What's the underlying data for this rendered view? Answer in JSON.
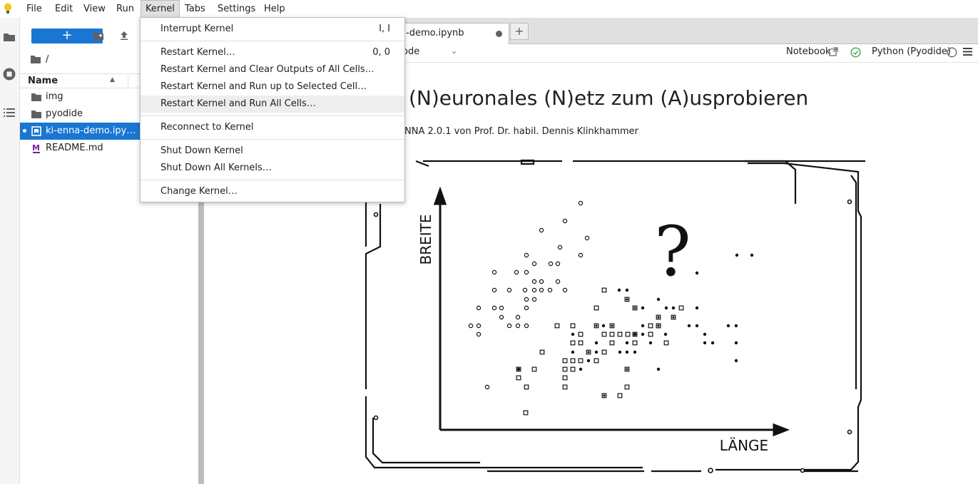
{
  "menubar": {
    "items": [
      "File",
      "Edit",
      "View",
      "Run",
      "Kernel",
      "Tabs",
      "Settings",
      "Help"
    ],
    "active": "Kernel"
  },
  "kernel_menu": {
    "items": [
      {
        "label": "Interrupt Kernel",
        "shortcut": "I, I"
      },
      {
        "label": "Restart Kernel…",
        "shortcut": "0, 0"
      },
      {
        "label": "Restart Kernel and Clear Outputs of All Cells…",
        "shortcut": ""
      },
      {
        "label": "Restart Kernel and Run up to Selected Cell…",
        "shortcut": ""
      },
      {
        "label": "Restart Kernel and Run All Cells…",
        "shortcut": ""
      },
      {
        "label": "Reconnect to Kernel",
        "shortcut": ""
      },
      {
        "label": "Shut Down Kernel",
        "shortcut": ""
      },
      {
        "label": "Shut Down All Kernels…",
        "shortcut": ""
      },
      {
        "label": "Change Kernel…",
        "shortcut": ""
      }
    ],
    "hovered": "Restart Kernel and Run All Cells…"
  },
  "filebrowser": {
    "new_button": "+",
    "path": "/",
    "column_name": "Name",
    "files": [
      {
        "name": "img",
        "type": "folder"
      },
      {
        "name": "pyodide",
        "type": "folder"
      },
      {
        "name": "ki-enna-demo.ipy…",
        "type": "notebook",
        "selected": true
      },
      {
        "name": "README.md",
        "type": "markdown"
      }
    ]
  },
  "tabs": {
    "doc_tab_label": "-demo.ipynb",
    "add_tab": "+"
  },
  "nb_toolbar": {
    "cell_type": "ode",
    "notebook_label": "Notebook",
    "kernel_name": "Python (Pyodide)"
  },
  "notebook": {
    "title": "(N)euronales (N)etz zum (A)usprobieren",
    "subtitle": "NNA 2.0.1 von Prof. Dr. habil. Dennis Klinkhammer",
    "illustration": {
      "y_label": "BREITE",
      "x_label": "LÄNGE",
      "question_mark": "?"
    }
  },
  "colors": {
    "accent": "#1976d2",
    "menu_active": "#e0e0e0",
    "kernel_ok": "#4caf50"
  }
}
